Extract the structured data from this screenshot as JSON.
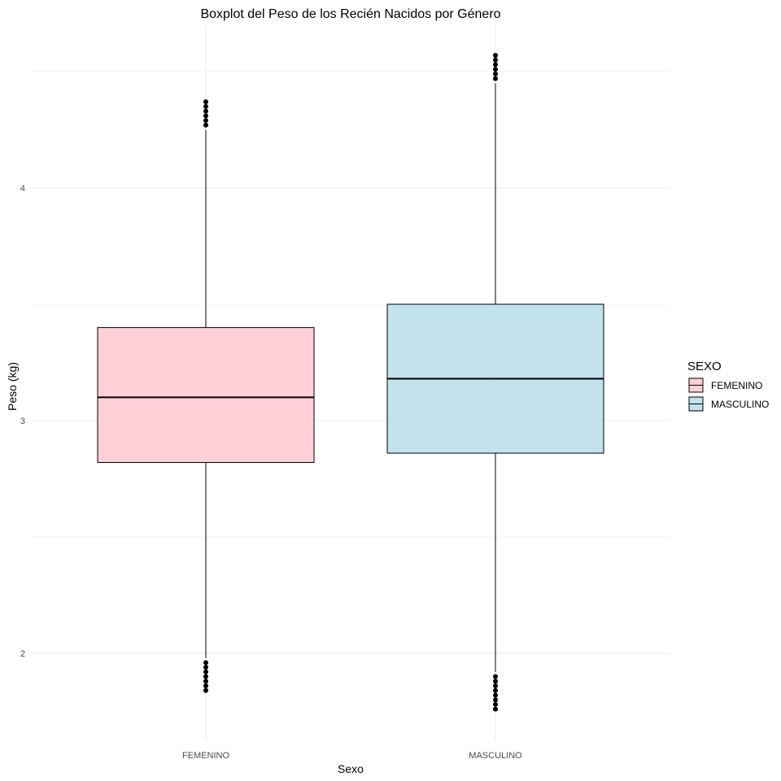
{
  "chart_data": {
    "type": "boxplot",
    "title": "Boxplot del Peso de los Recién Nacidos por Género",
    "xlabel": "Sexo",
    "ylabel": "Peso (kg)",
    "categories": [
      "FEMENINO",
      "MASCULINO"
    ],
    "y_ticks": [
      2,
      3,
      4
    ],
    "ylim": [
      1.58,
      4.77
    ],
    "grid": true,
    "legend": {
      "title": "SEXO",
      "placement": "right",
      "entries": [
        "FEMENINO",
        "MASCULINO"
      ]
    },
    "colors": {
      "FEMENINO": "#ffc0cb",
      "MASCULINO": "#add8e6"
    },
    "boxes": [
      {
        "category": "FEMENINO",
        "whisker_low": 1.98,
        "q1": 2.82,
        "median": 3.1,
        "q3": 3.4,
        "whisker_high": 4.25,
        "outliers": [
          1.84,
          1.86,
          1.88,
          1.9,
          1.92,
          1.94,
          1.96,
          4.27,
          4.29,
          4.31,
          4.33,
          4.35,
          4.37
        ]
      },
      {
        "category": "MASCULINO",
        "whisker_low": 1.92,
        "q1": 2.86,
        "median": 3.18,
        "q3": 3.5,
        "whisker_high": 4.45,
        "outliers": [
          1.76,
          1.78,
          1.8,
          1.82,
          1.84,
          1.86,
          1.88,
          1.9,
          4.47,
          4.49,
          4.51,
          4.53,
          4.55,
          4.57
        ]
      }
    ]
  }
}
